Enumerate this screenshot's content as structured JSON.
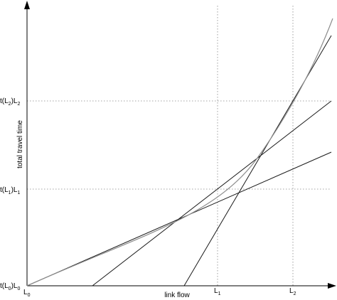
{
  "diagram": {
    "x_axis_label": "link flow",
    "y_axis_label": "total travel time",
    "x_ticks": [
      {
        "main": "L",
        "sub": "0"
      },
      {
        "main": "L",
        "sub": "1"
      },
      {
        "main": "L",
        "sub": "2"
      }
    ],
    "y_ticks": [
      {
        "p1": "t(L",
        "s1": "0",
        "p2": ")L",
        "s2": "0"
      },
      {
        "p1": "t(L",
        "s1": "1",
        "p2": ")L",
        "s2": "1"
      },
      {
        "p1": "t(L",
        "s1": "2",
        "p2": ")L",
        "s2": "2"
      }
    ],
    "colors": {
      "axes": "#000000",
      "curve": "#8c8c8c",
      "tangent_lines": "#1a1a1a",
      "guides": "#888888"
    }
  }
}
